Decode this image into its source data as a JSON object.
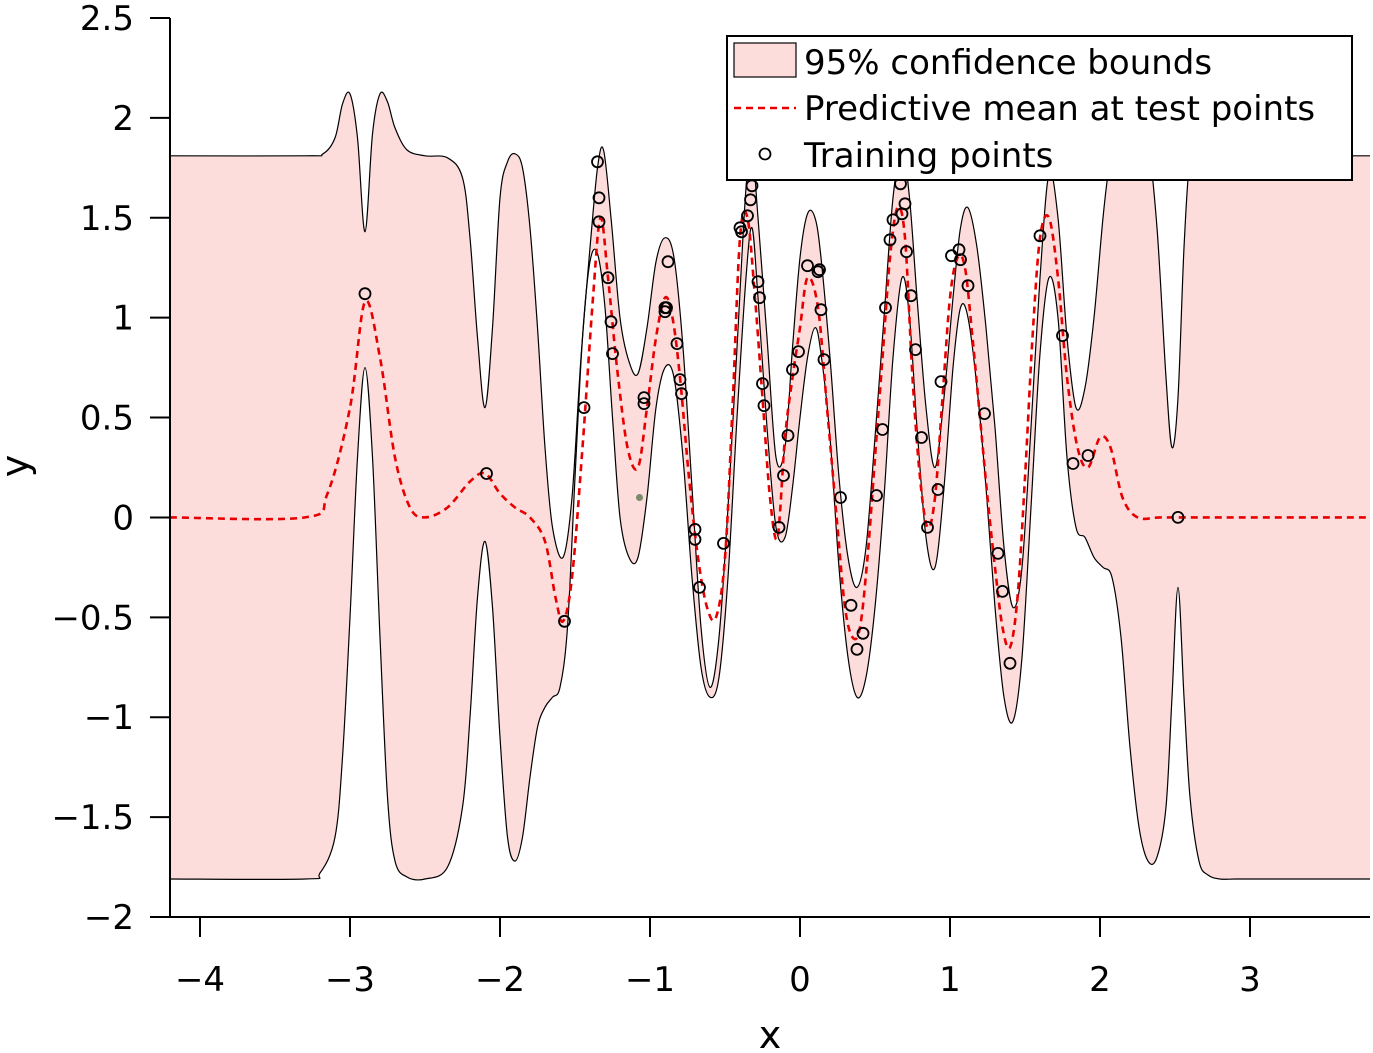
{
  "chart_data": {
    "type": "line",
    "title": "",
    "xlabel": "x",
    "ylabel": "y",
    "xlim": [
      -4.2,
      3.8
    ],
    "ylim": [
      -2,
      2.5
    ],
    "xticks": [
      -4,
      -3,
      -2,
      -1,
      0,
      1,
      2,
      3
    ],
    "yticks": [
      -2,
      -1.5,
      -1,
      -0.5,
      0,
      0.5,
      1,
      1.5,
      2,
      2.5
    ],
    "xtick_labels": [
      "−4",
      "−3",
      "−2",
      "−1",
      "0",
      "1",
      "2",
      "3"
    ],
    "ytick_labels": [
      "−2",
      "−1.5",
      "−1",
      "−0.5",
      "0",
      "0.5",
      "1",
      "1.5",
      "2",
      "2.5"
    ],
    "grid": false,
    "legend": {
      "placement": "top-right",
      "entries": [
        "95% confidence bounds",
        "Predictive mean at test points",
        "Training points"
      ]
    },
    "colors": {
      "band_fill": "#fddcdc",
      "band_edge": "#000000",
      "mean": "#e80000",
      "points": "#000000"
    },
    "predictive_mean": {
      "x": [
        -4.2,
        -3.3,
        -3.15,
        -3.0,
        -2.9,
        -2.8,
        -2.7,
        -2.6,
        -2.5,
        -2.35,
        -2.2,
        -2.1,
        -2.0,
        -1.9,
        -1.8,
        -1.7,
        -1.63,
        -1.58,
        -1.52,
        -1.45,
        -1.38,
        -1.33,
        -1.28,
        -1.22,
        -1.15,
        -1.08,
        -1.02,
        -0.96,
        -0.9,
        -0.85,
        -0.8,
        -0.74,
        -0.68,
        -0.62,
        -0.56,
        -0.5,
        -0.45,
        -0.4,
        -0.35,
        -0.3,
        -0.25,
        -0.2,
        -0.15,
        -0.1,
        -0.05,
        0.0,
        0.05,
        0.12,
        0.18,
        0.25,
        0.3,
        0.35,
        0.4,
        0.45,
        0.5,
        0.55,
        0.6,
        0.65,
        0.7,
        0.75,
        0.8,
        0.85,
        0.9,
        0.95,
        1.0,
        1.05,
        1.1,
        1.15,
        1.2,
        1.25,
        1.3,
        1.35,
        1.4,
        1.45,
        1.5,
        1.55,
        1.6,
        1.66,
        1.72,
        1.78,
        1.85,
        1.92,
        2.0,
        2.07,
        2.15,
        2.25,
        2.4,
        2.6,
        3.0,
        3.8
      ],
      "y": [
        0.0,
        0.0,
        0.12,
        0.55,
        1.08,
        0.8,
        0.3,
        0.05,
        0.0,
        0.05,
        0.18,
        0.22,
        0.12,
        0.05,
        0.0,
        -0.12,
        -0.4,
        -0.52,
        -0.3,
        0.35,
        1.1,
        1.5,
        1.2,
        0.75,
        0.35,
        0.25,
        0.55,
        0.9,
        1.1,
        1.0,
        0.7,
        0.2,
        -0.2,
        -0.45,
        -0.5,
        -0.2,
        0.55,
        1.4,
        1.5,
        1.1,
        0.6,
        0.1,
        -0.1,
        0.4,
        0.7,
        0.95,
        1.2,
        1.05,
        0.55,
        -0.05,
        -0.45,
        -0.6,
        -0.55,
        -0.2,
        0.3,
        0.8,
        1.3,
        1.55,
        1.4,
        0.7,
        0.2,
        -0.05,
        0.1,
        0.6,
        1.1,
        1.3,
        1.25,
        0.9,
        0.5,
        0.1,
        -0.25,
        -0.55,
        -0.65,
        -0.4,
        0.2,
        0.9,
        1.4,
        1.5,
        1.2,
        0.7,
        0.35,
        0.25,
        0.4,
        0.35,
        0.1,
        0.0,
        0.0,
        0.0,
        0.0,
        0.0
      ]
    },
    "upper_bound": {
      "x": [
        -4.2,
        -3.3,
        -3.18,
        -3.1,
        -3.05,
        -3.0,
        -2.95,
        -2.9,
        -2.85,
        -2.8,
        -2.75,
        -2.7,
        -2.62,
        -2.5,
        -2.35,
        -2.25,
        -2.2,
        -2.15,
        -2.1,
        -2.05,
        -2.0,
        -1.95,
        -1.9,
        -1.85,
        -1.8,
        -1.75,
        -1.7,
        -1.65,
        -1.58,
        -1.52,
        -1.46,
        -1.4,
        -1.35,
        -1.31,
        -1.26,
        -1.2,
        -1.14,
        -1.08,
        -1.02,
        -0.96,
        -0.9,
        -0.84,
        -0.78,
        -0.72,
        -0.66,
        -0.6,
        -0.54,
        -0.48,
        -0.42,
        -0.36,
        -0.32,
        -0.28,
        -0.22,
        -0.16,
        -0.1,
        -0.05,
        0.0,
        0.05,
        0.1,
        0.14,
        0.2,
        0.26,
        0.32,
        0.38,
        0.44,
        0.5,
        0.56,
        0.62,
        0.68,
        0.73,
        0.78,
        0.84,
        0.9,
        0.96,
        1.02,
        1.07,
        1.12,
        1.18,
        1.24,
        1.3,
        1.36,
        1.42,
        1.48,
        1.54,
        1.6,
        1.66,
        1.72,
        1.78,
        1.84,
        1.9,
        1.96,
        2.02,
        2.06,
        2.1,
        2.15,
        2.2,
        2.26,
        2.32,
        2.38,
        2.44,
        2.48,
        2.52,
        2.56,
        2.6,
        2.66,
        2.72,
        2.8,
        2.9,
        3.05,
        3.8
      ],
      "y": [
        1.81,
        1.81,
        1.82,
        1.9,
        2.07,
        2.12,
        1.9,
        1.43,
        1.92,
        2.12,
        2.08,
        1.95,
        1.84,
        1.81,
        1.8,
        1.7,
        1.4,
        0.9,
        0.55,
        0.95,
        1.6,
        1.78,
        1.82,
        1.75,
        1.45,
        0.95,
        0.35,
        -0.05,
        -0.2,
        0.1,
        0.8,
        1.35,
        1.75,
        1.84,
        1.5,
        1.0,
        0.78,
        0.72,
        0.95,
        1.28,
        1.4,
        1.3,
        0.85,
        0.15,
        -0.55,
        -0.85,
        -0.6,
        0.05,
        0.85,
        1.65,
        1.84,
        1.5,
        0.9,
        0.3,
        0.35,
        0.85,
        1.3,
        1.52,
        1.5,
        1.3,
        0.8,
        0.2,
        -0.2,
        -0.35,
        -0.15,
        0.4,
        1.0,
        1.6,
        1.84,
        1.6,
        1.1,
        0.55,
        0.25,
        0.6,
        1.1,
        1.45,
        1.55,
        1.35,
        0.95,
        0.45,
        -0.15,
        -0.45,
        -0.25,
        0.45,
        1.2,
        1.72,
        1.5,
        0.9,
        0.55,
        0.65,
        1.0,
        1.5,
        1.75,
        1.85,
        1.9,
        1.75,
        1.7,
        1.85,
        1.45,
        0.7,
        0.35,
        0.6,
        1.35,
        1.8,
        1.9,
        1.85,
        1.82,
        1.81,
        1.81,
        1.81
      ]
    },
    "lower_bound": {
      "x": [
        -4.2,
        -3.3,
        -3.2,
        -3.1,
        -3.05,
        -3.0,
        -2.95,
        -2.9,
        -2.85,
        -2.8,
        -2.75,
        -2.7,
        -2.62,
        -2.5,
        -2.35,
        -2.25,
        -2.2,
        -2.15,
        -2.1,
        -2.05,
        -2.0,
        -1.95,
        -1.9,
        -1.85,
        -1.8,
        -1.75,
        -1.7,
        -1.65,
        -1.6,
        -1.55,
        -1.5,
        -1.45,
        -1.4,
        -1.35,
        -1.3,
        -1.25,
        -1.2,
        -1.14,
        -1.08,
        -1.02,
        -0.96,
        -0.9,
        -0.84,
        -0.78,
        -0.72,
        -0.66,
        -0.6,
        -0.54,
        -0.48,
        -0.42,
        -0.36,
        -0.32,
        -0.28,
        -0.22,
        -0.16,
        -0.1,
        -0.05,
        0.0,
        0.05,
        0.1,
        0.14,
        0.2,
        0.26,
        0.32,
        0.38,
        0.44,
        0.5,
        0.56,
        0.62,
        0.68,
        0.73,
        0.78,
        0.84,
        0.9,
        0.96,
        1.02,
        1.07,
        1.12,
        1.18,
        1.24,
        1.3,
        1.36,
        1.42,
        1.48,
        1.54,
        1.6,
        1.66,
        1.72,
        1.78,
        1.84,
        1.9,
        1.96,
        2.02,
        2.08,
        2.14,
        2.2,
        2.26,
        2.32,
        2.38,
        2.44,
        2.48,
        2.52,
        2.56,
        2.6,
        2.66,
        2.72,
        2.8,
        2.9,
        3.05,
        3.8
      ],
      "y": [
        -1.81,
        -1.81,
        -1.78,
        -1.6,
        -1.2,
        -0.5,
        0.3,
        0.75,
        0.3,
        -0.6,
        -1.4,
        -1.72,
        -1.8,
        -1.81,
        -1.75,
        -1.45,
        -1.0,
        -0.4,
        -0.12,
        -0.45,
        -1.1,
        -1.6,
        -1.72,
        -1.6,
        -1.3,
        -1.05,
        -0.95,
        -0.9,
        -0.85,
        -0.55,
        0.2,
        0.9,
        1.28,
        1.32,
        1.05,
        0.5,
        0.0,
        -0.2,
        -0.2,
        0.1,
        0.55,
        0.75,
        0.7,
        0.3,
        -0.3,
        -0.75,
        -0.9,
        -0.8,
        -0.3,
        0.5,
        1.2,
        1.45,
        1.1,
        0.45,
        -0.05,
        -0.1,
        0.15,
        0.5,
        0.8,
        0.95,
        0.82,
        0.4,
        -0.25,
        -0.7,
        -0.9,
        -0.8,
        -0.45,
        0.1,
        0.8,
        1.2,
        1.0,
        0.45,
        -0.1,
        -0.25,
        0.15,
        0.75,
        1.05,
        1.0,
        0.65,
        0.15,
        -0.45,
        -0.9,
        -1.02,
        -0.7,
        0.05,
        0.82,
        1.2,
        1.0,
        0.3,
        -0.05,
        -0.1,
        -0.2,
        -0.25,
        -0.3,
        -0.6,
        -1.15,
        -1.55,
        -1.72,
        -1.7,
        -1.45,
        -0.9,
        -0.35,
        -0.9,
        -1.4,
        -1.72,
        -1.79,
        -1.81,
        -1.81,
        -1.81,
        -1.81
      ]
    },
    "training_points": {
      "x": [
        -2.9,
        -2.09,
        -1.57,
        -1.44,
        -1.35,
        -1.34,
        -1.34,
        -1.28,
        -1.26,
        -1.25,
        -1.04,
        -1.04,
        -0.9,
        -0.9,
        -0.89,
        -0.88,
        -0.82,
        -0.8,
        -0.79,
        -0.7,
        -0.7,
        -0.67,
        -0.51,
        -0.4,
        -0.39,
        -0.35,
        -0.33,
        -0.32,
        -0.28,
        -0.27,
        -0.25,
        -0.24,
        -0.14,
        -0.11,
        -0.08,
        -0.05,
        -0.01,
        0.05,
        0.12,
        0.13,
        0.14,
        0.16,
        0.27,
        0.34,
        0.38,
        0.42,
        0.51,
        0.55,
        0.57,
        0.6,
        0.62,
        0.67,
        0.68,
        0.7,
        0.71,
        0.74,
        0.77,
        0.81,
        0.85,
        0.92,
        0.94,
        1.01,
        1.06,
        1.07,
        1.12,
        1.23,
        1.32,
        1.35,
        1.4,
        1.6,
        1.75,
        1.82,
        1.92,
        2.52
      ],
      "y": [
        1.12,
        0.22,
        -0.52,
        0.55,
        1.78,
        1.6,
        1.48,
        1.2,
        0.98,
        0.82,
        0.6,
        0.57,
        1.05,
        1.03,
        1.05,
        1.28,
        0.87,
        0.69,
        0.62,
        -0.06,
        -0.11,
        -0.35,
        -0.13,
        1.45,
        1.43,
        1.51,
        1.59,
        1.66,
        1.18,
        1.1,
        0.67,
        0.56,
        -0.05,
        0.21,
        0.41,
        0.74,
        0.83,
        1.26,
        1.23,
        1.24,
        1.04,
        0.79,
        0.1,
        -0.44,
        -0.66,
        -0.58,
        0.11,
        0.44,
        1.05,
        1.39,
        1.49,
        1.67,
        1.52,
        1.57,
        1.33,
        1.11,
        0.84,
        0.4,
        -0.05,
        0.14,
        0.68,
        1.31,
        1.34,
        1.29,
        1.16,
        0.52,
        -0.18,
        -0.37,
        -0.73,
        1.41,
        0.91,
        0.27,
        0.31,
        0.0
      ]
    },
    "stray_point": {
      "x": -1.07,
      "y": 0.1,
      "color": "#7a8a6a"
    }
  }
}
